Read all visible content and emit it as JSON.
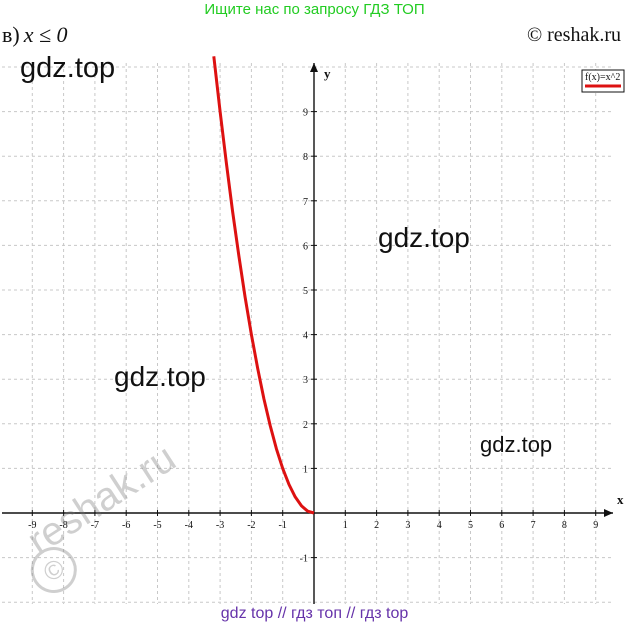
{
  "header": {
    "search_banner": "Ищите нас по запросу ГДЗ ТОП"
  },
  "task": {
    "label": "в)",
    "condition": "x ≤ 0"
  },
  "copyright": "© reshak.ru",
  "watermarks": [
    "gdz.top",
    "gdz.top",
    "gdz.top",
    "gdz.top"
  ],
  "stamp": {
    "text": "reshak.ru",
    "symbol": "©"
  },
  "footer": "gdz top  //  гдз топ  //  гдз top",
  "colors": {
    "curve": "#dd1111",
    "grid": "#c8c8c8",
    "axis": "#111111",
    "banner": "#22cc22",
    "footer": "#6633aa"
  },
  "chart_data": {
    "type": "line",
    "title": "",
    "xlabel": "x",
    "ylabel": "y",
    "xlim": [
      -9.5,
      9.8
    ],
    "ylim": [
      -1.9,
      10
    ],
    "x_ticks": [
      -9,
      -8,
      -7,
      -6,
      -5,
      -4,
      -3,
      -2,
      -1,
      1,
      2,
      3,
      4,
      5,
      6,
      7,
      8,
      9
    ],
    "y_ticks": [
      -1,
      1,
      2,
      3,
      4,
      5,
      6,
      7,
      8,
      9
    ],
    "grid": true,
    "legend": {
      "placement": "top-right",
      "entries": [
        "f(x)=x^2"
      ]
    },
    "series": [
      {
        "name": "f(x)=x^2",
        "x": [
          -3.2,
          -3.0,
          -2.8,
          -2.6,
          -2.4,
          -2.2,
          -2.0,
          -1.8,
          -1.6,
          -1.4,
          -1.2,
          -1.0,
          -0.8,
          -0.6,
          -0.4,
          -0.2,
          0.0
        ],
        "y": [
          10.24,
          9.0,
          7.84,
          6.76,
          5.76,
          4.84,
          4.0,
          3.24,
          2.56,
          1.96,
          1.44,
          1.0,
          0.64,
          0.36,
          0.16,
          0.04,
          0.0
        ]
      }
    ]
  }
}
